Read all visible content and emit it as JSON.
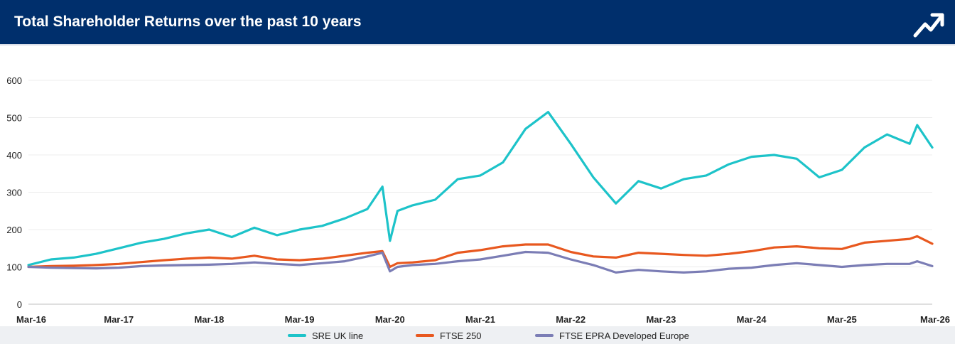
{
  "header": {
    "title": "Total Shareholder Returns over the past 10 years",
    "icon": "trend-up-icon",
    "background": "#002f6c"
  },
  "chart_data": {
    "type": "line",
    "title": "Total Shareholder Returns over the past 10 years",
    "xlabel": "",
    "ylabel": "",
    "ylim": [
      0,
      600
    ],
    "y_ticks": [
      0,
      100,
      200,
      300,
      400,
      500,
      600
    ],
    "x_tick_labels": [
      "Mar-16",
      "Mar-17",
      "Mar-18",
      "Mar-19",
      "Mar-20",
      "Mar-21",
      "Mar-22",
      "Mar-23",
      "Mar-24",
      "Mar-25",
      "Mar-26"
    ],
    "grid": "horizontal",
    "legend_position": "bottom",
    "x": [
      "2016-03",
      "2016-06",
      "2016-09",
      "2016-12",
      "2017-03",
      "2017-06",
      "2017-09",
      "2017-12",
      "2018-03",
      "2018-06",
      "2018-09",
      "2018-12",
      "2019-03",
      "2019-06",
      "2019-09",
      "2019-12",
      "2020-02",
      "2020-03",
      "2020-04",
      "2020-06",
      "2020-09",
      "2020-12",
      "2021-03",
      "2021-06",
      "2021-09",
      "2021-12",
      "2022-03",
      "2022-06",
      "2022-09",
      "2022-12",
      "2023-03",
      "2023-06",
      "2023-09",
      "2023-12",
      "2024-03",
      "2024-06",
      "2024-09",
      "2024-12",
      "2025-03",
      "2025-06",
      "2025-09",
      "2025-12",
      "2026-01",
      "2026-03"
    ],
    "series": [
      {
        "name": "SRE UK line",
        "color": "#1dc3c9",
        "values": [
          105,
          120,
          125,
          135,
          150,
          165,
          175,
          190,
          200,
          180,
          205,
          185,
          200,
          210,
          230,
          255,
          315,
          170,
          250,
          265,
          280,
          335,
          345,
          380,
          470,
          515,
          430,
          340,
          270,
          330,
          310,
          335,
          345,
          375,
          395,
          400,
          390,
          340,
          360,
          420,
          455,
          430,
          480,
          420
        ]
      },
      {
        "name": "FTSE 250",
        "color": "#e8581f",
        "values": [
          100,
          102,
          103,
          105,
          108,
          113,
          118,
          122,
          125,
          122,
          130,
          120,
          118,
          122,
          130,
          138,
          142,
          100,
          110,
          112,
          118,
          138,
          145,
          155,
          160,
          160,
          140,
          128,
          125,
          138,
          135,
          132,
          130,
          135,
          142,
          152,
          155,
          150,
          148,
          165,
          170,
          175,
          182,
          162
        ]
      },
      {
        "name": "FTSE EPRA Developed Europe",
        "color": "#7b7db5",
        "values": [
          100,
          98,
          97,
          96,
          98,
          102,
          104,
          105,
          106,
          108,
          112,
          108,
          105,
          110,
          115,
          128,
          138,
          88,
          100,
          105,
          108,
          115,
          120,
          130,
          140,
          138,
          120,
          105,
          85,
          92,
          88,
          85,
          88,
          95,
          98,
          105,
          110,
          105,
          100,
          105,
          108,
          108,
          115,
          102
        ]
      }
    ]
  }
}
